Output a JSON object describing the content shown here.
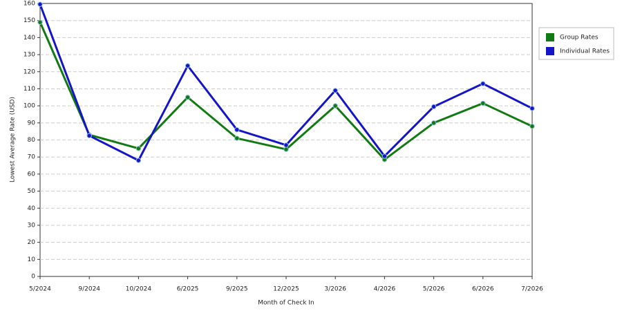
{
  "chart_data": {
    "type": "line",
    "x_label": "Month of Check In",
    "y_label": "Lowest Average Rate (USD)",
    "categories": [
      "5/2024",
      "9/2024",
      "10/2024",
      "6/2025",
      "9/2025",
      "12/2025",
      "3/2026",
      "4/2026",
      "5/2026",
      "6/2026",
      "7/2026"
    ],
    "series": [
      {
        "name": "Group Rates",
        "color": "#127a12",
        "values": [
          149,
          83,
          75,
          105,
          81,
          74.5,
          100,
          68.5,
          90,
          101.5,
          88
        ]
      },
      {
        "name": "Individual Rates",
        "color": "#1515c8",
        "values": [
          159.5,
          82.5,
          68,
          123.5,
          86,
          77,
          109,
          70.5,
          99.5,
          113,
          98.5
        ]
      }
    ],
    "ylim": [
      0,
      160
    ],
    "yticks": [
      0,
      10,
      20,
      30,
      40,
      50,
      60,
      70,
      80,
      90,
      100,
      110,
      120,
      130,
      140,
      150,
      160
    ],
    "grid": true,
    "legend": "right"
  }
}
